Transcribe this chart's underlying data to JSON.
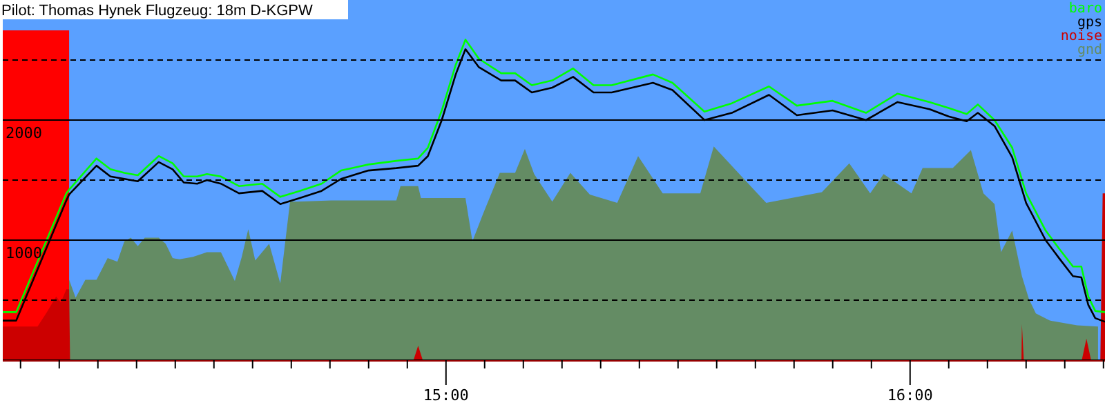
{
  "chart_data": {
    "type": "line",
    "title": "Pilot: Thomas Hynek Flugzeug: 18m D-KGPW",
    "xlim": [
      14.045,
      16.42
    ],
    "ylim": [
      0,
      3000
    ],
    "xticks": [
      {
        "value": 14.0833,
        "label": null
      },
      {
        "value": 14.1667,
        "label": null
      },
      {
        "value": 14.25,
        "label": null
      },
      {
        "value": 14.3333,
        "label": null
      },
      {
        "value": 14.4167,
        "label": null
      },
      {
        "value": 14.5,
        "label": null
      },
      {
        "value": 14.5833,
        "label": null
      },
      {
        "value": 14.6667,
        "label": null
      },
      {
        "value": 14.75,
        "label": null
      },
      {
        "value": 14.8333,
        "label": null
      },
      {
        "value": 14.9167,
        "label": null
      },
      {
        "value": 15,
        "label": "15:00"
      },
      {
        "value": 15.0833,
        "label": null
      },
      {
        "value": 15.1667,
        "label": null
      },
      {
        "value": 15.25,
        "label": null
      },
      {
        "value": 15.3333,
        "label": null
      },
      {
        "value": 15.4167,
        "label": null
      },
      {
        "value": 15.5,
        "label": null
      },
      {
        "value": 15.5833,
        "label": null
      },
      {
        "value": 15.6667,
        "label": null
      },
      {
        "value": 15.75,
        "label": null
      },
      {
        "value": 15.8333,
        "label": null
      },
      {
        "value": 15.9167,
        "label": null
      },
      {
        "value": 16,
        "label": "16:00"
      },
      {
        "value": 16.0833,
        "label": null
      },
      {
        "value": 16.1667,
        "label": null
      },
      {
        "value": 16.25,
        "label": null
      },
      {
        "value": 16.3333,
        "label": null
      },
      {
        "value": 16.4167,
        "label": null
      }
    ],
    "yticks": [
      {
        "value": 500,
        "label": null
      },
      1000,
      {
        "value": 1500,
        "label": null
      },
      2000,
      {
        "value": 2500,
        "label": null
      }
    ],
    "grid": "y",
    "legend": "top right",
    "bands": [
      {
        "axis": "x",
        "from": 14.045,
        "to": 14.188,
        "color": "#ff0000"
      }
    ],
    "series": [
      {
        "name": "baro",
        "color": "#00ff00",
        "x": [
          14.045,
          14.074,
          14.182,
          14.188,
          14.247,
          14.277,
          14.307,
          14.336,
          14.381,
          14.411,
          14.435,
          14.464,
          14.485,
          14.515,
          14.554,
          14.604,
          14.643,
          14.685,
          14.732,
          14.774,
          14.833,
          14.893,
          14.94,
          14.961,
          14.991,
          15.021,
          15.042,
          15.071,
          15.119,
          15.149,
          15.185,
          15.229,
          15.274,
          15.318,
          15.357,
          15.446,
          15.488,
          15.557,
          15.616,
          15.696,
          15.756,
          15.833,
          15.905,
          15.973,
          16.042,
          16.083,
          16.122,
          16.146,
          16.182,
          16.22,
          16.25,
          16.292,
          16.321,
          16.351,
          16.369,
          16.384,
          16.399,
          16.42
        ],
        "values": [
          400,
          400,
          1390,
          1420,
          1680,
          1590,
          1560,
          1540,
          1700,
          1640,
          1530,
          1530,
          1550,
          1530,
          1450,
          1470,
          1360,
          1410,
          1470,
          1580,
          1630,
          1660,
          1680,
          1770,
          2080,
          2460,
          2670,
          2510,
          2390,
          2390,
          2290,
          2330,
          2430,
          2290,
          2290,
          2380,
          2310,
          2070,
          2140,
          2280,
          2120,
          2160,
          2060,
          2220,
          2150,
          2100,
          2050,
          2130,
          2000,
          1770,
          1390,
          1080,
          930,
          780,
          780,
          530,
          410,
          400
        ]
      },
      {
        "name": "gps",
        "color": "#000000",
        "x": [
          14.045,
          14.074,
          14.182,
          14.188,
          14.247,
          14.277,
          14.307,
          14.336,
          14.381,
          14.411,
          14.435,
          14.464,
          14.485,
          14.515,
          14.554,
          14.604,
          14.643,
          14.685,
          14.732,
          14.774,
          14.833,
          14.893,
          14.94,
          14.961,
          14.991,
          15.021,
          15.042,
          15.071,
          15.119,
          15.149,
          15.185,
          15.229,
          15.274,
          15.318,
          15.357,
          15.446,
          15.488,
          15.557,
          15.616,
          15.696,
          15.756,
          15.833,
          15.905,
          15.973,
          16.042,
          16.083,
          16.122,
          16.146,
          16.182,
          16.22,
          16.25,
          16.292,
          16.321,
          16.351,
          16.369,
          16.384,
          16.399,
          16.42
        ],
        "values": [
          330,
          330,
          1330,
          1380,
          1620,
          1530,
          1510,
          1490,
          1650,
          1590,
          1480,
          1470,
          1500,
          1470,
          1390,
          1410,
          1300,
          1350,
          1410,
          1510,
          1580,
          1600,
          1620,
          1700,
          2000,
          2380,
          2590,
          2440,
          2330,
          2330,
          2230,
          2270,
          2360,
          2230,
          2230,
          2310,
          2250,
          2000,
          2060,
          2210,
          2040,
          2080,
          2000,
          2150,
          2090,
          2030,
          1990,
          2060,
          1950,
          1690,
          1310,
          1000,
          850,
          700,
          690,
          460,
          350,
          320
        ]
      },
      {
        "name": "noise",
        "type": "area",
        "color": "#cc0000",
        "x": [
          14.045,
          14.12,
          14.14,
          14.16,
          14.17,
          14.182,
          14.188,
          14.19,
          14.93,
          14.94,
          14.95,
          16.24,
          16.241,
          16.245,
          16.37,
          16.38,
          16.39,
          16.41,
          16.415,
          16.42
        ],
        "values": [
          280,
          280,
          400,
          530,
          480,
          590,
          590,
          0,
          0,
          120,
          0,
          0,
          300,
          0,
          0,
          180,
          0,
          0,
          1390,
          1390
        ]
      },
      {
        "name": "gnd",
        "type": "area",
        "color": "#648c64",
        "x": [
          14.188,
          14.202,
          14.223,
          14.247,
          14.271,
          14.292,
          14.307,
          14.321,
          14.336,
          14.351,
          14.381,
          14.396,
          14.411,
          14.426,
          14.455,
          14.485,
          14.515,
          14.53,
          14.545,
          14.56,
          14.574,
          14.589,
          14.619,
          14.643,
          14.664,
          14.679,
          14.753,
          14.893,
          14.902,
          14.94,
          14.946,
          15.042,
          15.057,
          15.08,
          15.116,
          15.149,
          15.17,
          15.19,
          15.229,
          15.268,
          15.31,
          15.369,
          15.414,
          15.467,
          15.548,
          15.577,
          15.69,
          15.81,
          15.869,
          15.914,
          15.943,
          16.003,
          16.027,
          16.092,
          16.131,
          16.158,
          16.182,
          16.196,
          16.22,
          16.241,
          16.256,
          16.271,
          16.301,
          16.33,
          16.36,
          16.405
        ],
        "values": [
          670,
          520,
          670,
          670,
          850,
          820,
          990,
          1020,
          950,
          1020,
          1020,
          970,
          850,
          840,
          860,
          900,
          900,
          780,
          660,
          860,
          1090,
          830,
          970,
          640,
          1320,
          1320,
          1330,
          1330,
          1450,
          1450,
          1350,
          1350,
          990,
          1220,
          1560,
          1560,
          1760,
          1550,
          1320,
          1560,
          1380,
          1310,
          1700,
          1390,
          1390,
          1780,
          1310,
          1400,
          1640,
          1390,
          1550,
          1390,
          1600,
          1600,
          1750,
          1390,
          1300,
          900,
          1080,
          700,
          510,
          390,
          330,
          310,
          290,
          280
        ]
      }
    ]
  }
}
